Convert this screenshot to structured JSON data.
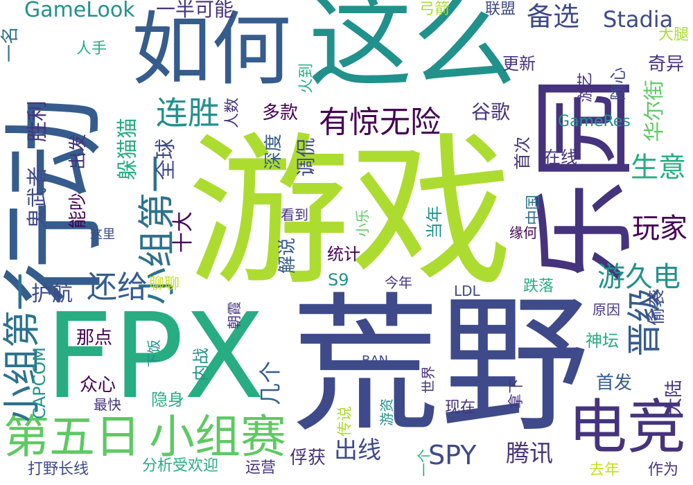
{
  "palette": {
    "purple": "#46337e",
    "indigo": "#3e4a89",
    "blue": "#365c8d",
    "steel": "#2c728e",
    "teal": "#21918c",
    "green": "#27ad81",
    "lime": "#5ec962",
    "chartreuse": "#addc30",
    "yellow": "#c8e020",
    "darkpurple": "#440154"
  },
  "words": [
    {
      "text": "游戏",
      "color": "chartreuse"
    },
    {
      "text": "荒野",
      "color": "indigo"
    },
    {
      "text": "FPX",
      "color": "green"
    },
    {
      "text": "这么",
      "color": "teal"
    },
    {
      "text": "行动",
      "color": "blue"
    },
    {
      "text": "乐园",
      "color": "purple"
    },
    {
      "text": "如何",
      "color": "blue"
    },
    {
      "text": "电竞",
      "color": "purple"
    },
    {
      "text": "第五日",
      "color": "lime"
    },
    {
      "text": "小组赛",
      "color": "lime"
    },
    {
      "text": "小组第一",
      "color": "steel"
    },
    {
      "text": "小组第一",
      "color": "steel"
    },
    {
      "text": "有惊无险",
      "color": "darkpurple"
    },
    {
      "text": "连胜",
      "color": "teal"
    },
    {
      "text": "备选",
      "color": "indigo"
    },
    {
      "text": "Stadia",
      "color": "indigo"
    },
    {
      "text": "GameLook",
      "color": "teal"
    },
    {
      "text": "一半可能",
      "color": "purple"
    },
    {
      "text": "弓箭",
      "color": "chartreuse"
    },
    {
      "text": "联盟",
      "color": "indigo"
    },
    {
      "text": "一名",
      "color": "steel"
    },
    {
      "text": "大腿",
      "color": "chartreuse"
    },
    {
      "text": "人手",
      "color": "green"
    },
    {
      "text": "更新",
      "color": "purple"
    },
    {
      "text": "奇异",
      "color": "purple"
    },
    {
      "text": "火到",
      "color": "green"
    },
    {
      "text": "游艺",
      "color": "purple"
    },
    {
      "text": "随心",
      "color": "indigo"
    },
    {
      "text": "华尔街",
      "color": "lime"
    },
    {
      "text": "人数",
      "color": "purple"
    },
    {
      "text": "多款",
      "color": "darkpurple"
    },
    {
      "text": "谷歌",
      "color": "purple"
    },
    {
      "text": "GameRes",
      "color": "teal"
    },
    {
      "text": "胜利",
      "color": "purple"
    },
    {
      "text": "深度",
      "color": "blue"
    },
    {
      "text": "调侃",
      "color": "indigo"
    },
    {
      "text": "首次",
      "color": "purple"
    },
    {
      "text": "躲猫猫",
      "color": "green"
    },
    {
      "text": "出发",
      "color": "purple"
    },
    {
      "text": "全球",
      "color": "indigo"
    },
    {
      "text": "生意",
      "color": "green"
    },
    {
      "text": "在线",
      "color": "purple"
    },
    {
      "text": "鬼武者",
      "color": "indigo"
    },
    {
      "text": "能吵",
      "color": "darkpurple"
    },
    {
      "text": "十大",
      "color": "darkpurple"
    },
    {
      "text": "中国",
      "color": "steel"
    },
    {
      "text": "玩家",
      "color": "darkpurple"
    },
    {
      "text": "这里",
      "color": "indigo"
    },
    {
      "text": "看到",
      "color": "purple"
    },
    {
      "text": "当年",
      "color": "teal"
    },
    {
      "text": "缘何",
      "color": "darkpurple"
    },
    {
      "text": "解说",
      "color": "blue"
    },
    {
      "text": "小乐",
      "color": "lime"
    },
    {
      "text": "统计",
      "color": "darkpurple"
    },
    {
      "text": "游久电",
      "color": "teal"
    },
    {
      "text": "还给",
      "color": "blue"
    },
    {
      "text": "护航",
      "color": "indigo"
    },
    {
      "text": "聊聊",
      "color": "yellow"
    },
    {
      "text": "S9",
      "color": "teal"
    },
    {
      "text": "今年",
      "color": "purple"
    },
    {
      "text": "晋级",
      "color": "blue"
    },
    {
      "text": "LDL",
      "color": "indigo"
    },
    {
      "text": "跌落",
      "color": "green"
    },
    {
      "text": "原因",
      "color": "purple"
    },
    {
      "text": "偷袭",
      "color": "indigo"
    },
    {
      "text": "朝霞",
      "color": "purple"
    },
    {
      "text": "神坛",
      "color": "green"
    },
    {
      "text": "那点",
      "color": "darkpurple"
    },
    {
      "text": "内战",
      "color": "teal"
    },
    {
      "text": "下饭",
      "color": "teal"
    },
    {
      "text": "BAN",
      "color": "indigo"
    },
    {
      "text": "几个",
      "color": "blue"
    },
    {
      "text": "众心",
      "color": "darkpurple"
    },
    {
      "text": "CAPCOM",
      "color": "teal"
    },
    {
      "text": "隐身",
      "color": "green"
    },
    {
      "text": "世界",
      "color": "purple"
    },
    {
      "text": "拿下",
      "color": "purple"
    },
    {
      "text": "大陆",
      "color": "purple"
    },
    {
      "text": "首发",
      "color": "blue"
    },
    {
      "text": "最快",
      "color": "purple"
    },
    {
      "text": "现在",
      "color": "purple"
    },
    {
      "text": "传说",
      "color": "chartreuse"
    },
    {
      "text": "游资",
      "color": "teal"
    },
    {
      "text": "出线",
      "color": "indigo"
    },
    {
      "text": "SPY",
      "color": "indigo"
    },
    {
      "text": "腾讯",
      "color": "purple"
    },
    {
      "text": "一个",
      "color": "green"
    },
    {
      "text": "俘获",
      "color": "purple"
    },
    {
      "text": "打野长线",
      "color": "indigo"
    },
    {
      "text": "分析受欢迎",
      "color": "green"
    },
    {
      "text": "运营",
      "color": "purple"
    },
    {
      "text": "去年",
      "color": "yellow"
    },
    {
      "text": "作为",
      "color": "purple"
    }
  ]
}
